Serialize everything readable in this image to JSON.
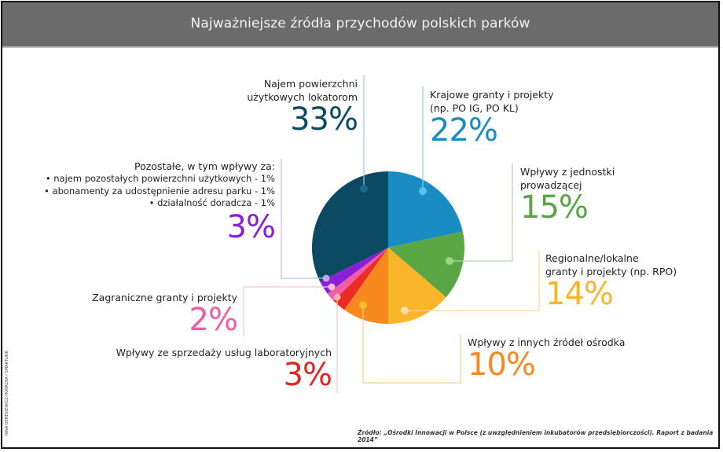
{
  "header": {
    "title": "Najważniejsze źródła przychodów polskich parków"
  },
  "chart_data": {
    "type": "pie",
    "title": "Najważniejsze źródła przychodów polskich parków",
    "unit": "%",
    "categories": [
      "Krajowe granty i projekty (np. PO IG, PO KL)",
      "Wpływy z jednostki prowadzącej",
      "Regionalne/lokalne granty i projekty (np. RPO)",
      "Wpływy z innych źródeł ośrodka",
      "Wpływy ze sprzedaży usług laboratoryjnych",
      "Zagraniczne granty i projekty",
      "Pozostałe",
      "Najem powierzchni użytkowych lokatorom"
    ],
    "values": [
      22,
      15,
      14,
      10,
      3,
      2,
      3,
      33
    ],
    "colors": [
      "#1a8cc4",
      "#5aa544",
      "#fbb52b",
      "#f7891f",
      "#ec2a26",
      "#f25ca2",
      "#8a1fd6",
      "#0c4a63"
    ],
    "start_angle_deg_clockwise_from_top": 0,
    "legend": "none (callout labels)",
    "sub_items": {
      "Pozostałe": [
        {
          "label": "najem pozostałych powierzchni użytkowych",
          "value": 1
        },
        {
          "label": "abonamenty za udostępnienie adresu parku",
          "value": 1
        },
        {
          "label": "działalność doradcza",
          "value": 1
        }
      ]
    }
  },
  "labels": {
    "najem": {
      "line1": "Najem powierzchni",
      "line2": "użytkowych lokatorom",
      "pct": "33%"
    },
    "krajowe": {
      "line1": "Krajowe granty i projekty",
      "line2": "(np. PO IG, PO KL)",
      "pct": "22%"
    },
    "jednostka": {
      "line1": "Wpływy z jednostki",
      "line2": "prowadzącej",
      "pct": "15%"
    },
    "regionalne": {
      "line1": "Regionalne/lokalne",
      "line2": "granty i projekty (np. RPO)",
      "pct": "14%"
    },
    "inne": {
      "line1": "Wpływy z innych źródeł ośrodka",
      "pct": "10%"
    },
    "laboratoryjne": {
      "line1": "Wpływy ze sprzedaży usług laboratoryjnych",
      "pct": "3%"
    },
    "zagraniczne": {
      "line1": "Zagraniczne granty i projekty",
      "pct": "2%"
    },
    "pozostale": {
      "line1": "Pozostałe, w tym wpływy za:",
      "b1": "• najem pozostałych powierzchni użytkowych - 1%",
      "b2": "• abonamenty za udostępnienie adresu parku - 1%",
      "b3": "• działalność doradcza - 1%",
      "pct": "3%"
    }
  },
  "footer": {
    "source": "Źródło: „Ośrodki Innowacji w Polsce (z uwzględnieniem inkubatorów przedsiębiorczości). Raport z badania 2014”",
    "credit": "NINA DERESIEWICZ-HORACKA / SMARTLINK"
  }
}
